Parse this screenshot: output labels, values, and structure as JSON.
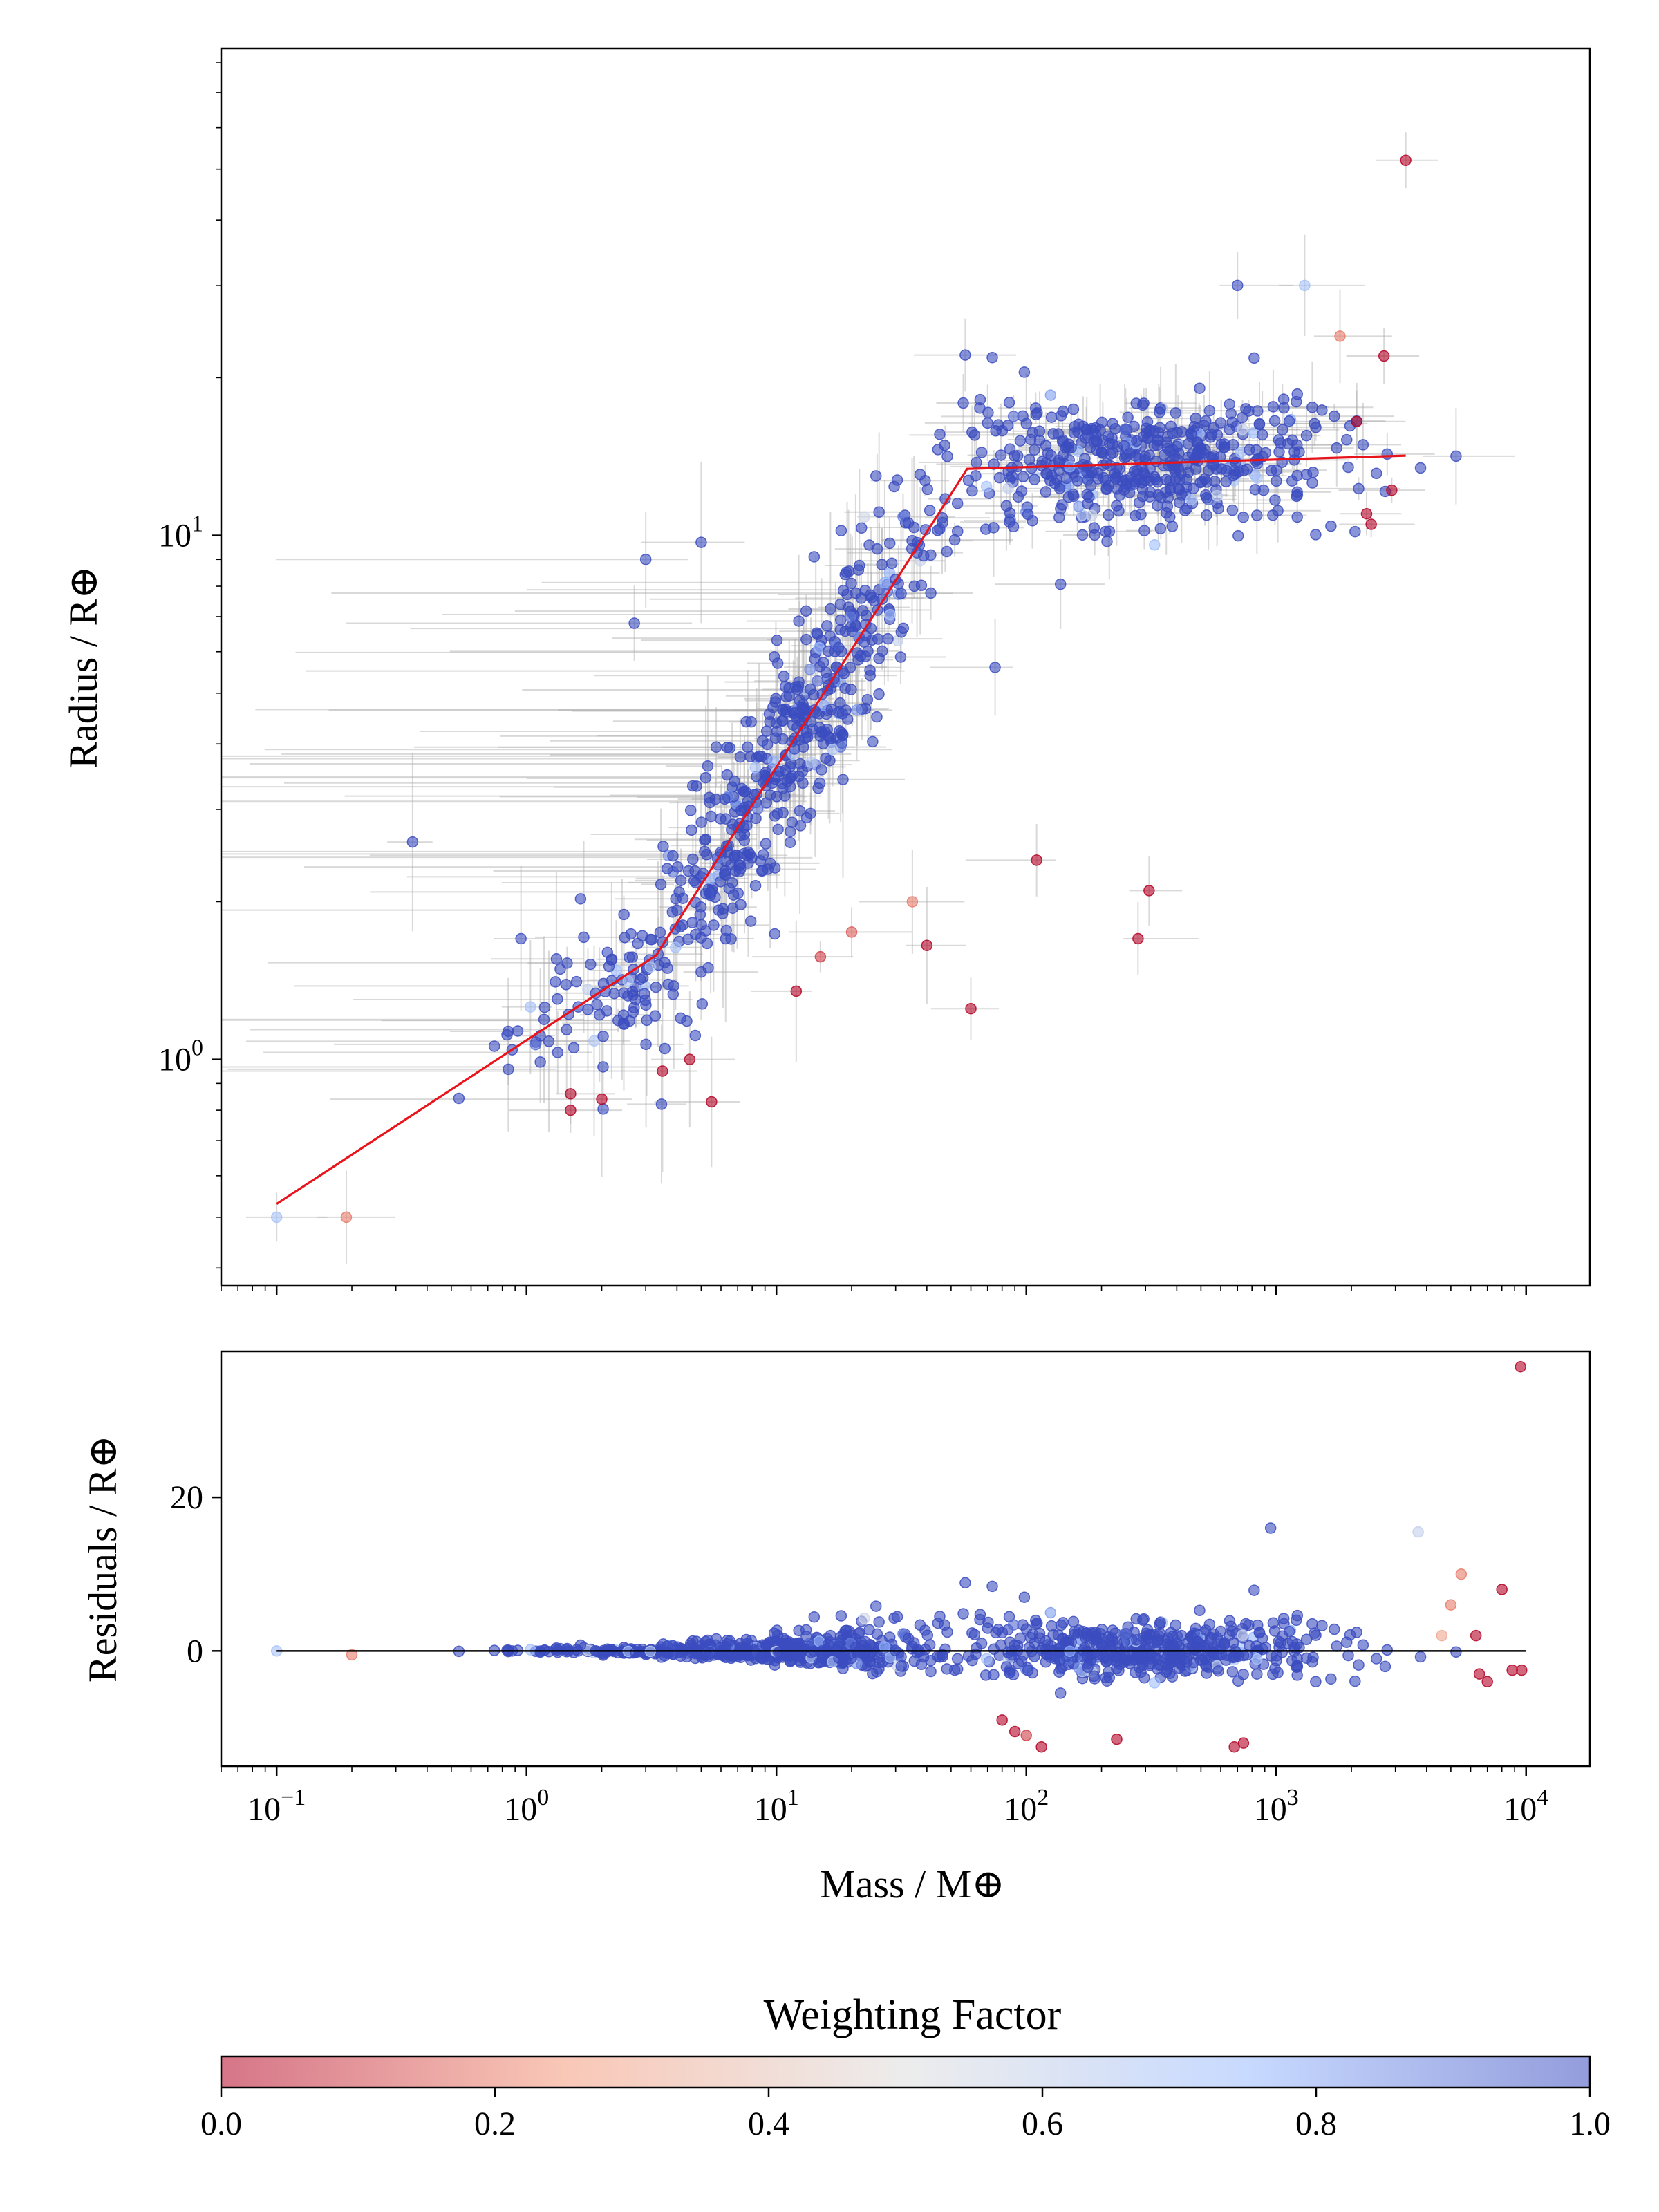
{
  "chart_data": [
    {
      "type": "scatter",
      "panel": "main",
      "ylabel": "Radius / R⊕",
      "xscale": "log",
      "yscale": "log",
      "xlim": [
        0.06,
        18000
      ],
      "ylim": [
        0.37,
        85
      ],
      "y_ticks": [
        {
          "value": 1,
          "label": "10",
          "exp": "0"
        },
        {
          "value": 10,
          "label": "10",
          "exp": "1"
        }
      ],
      "fit_line": {
        "color": "#e8141c",
        "x": [
          0.1,
          3.3,
          58,
          3300
        ],
        "y": [
          0.53,
          1.58,
          13.4,
          14.2
        ]
      },
      "outlier_points": [
        {
          "x": 0.1,
          "y": 0.5,
          "w": 0.7
        },
        {
          "x": 0.19,
          "y": 0.5,
          "w": 0.2
        },
        {
          "x": 0.35,
          "y": 2.6,
          "w": 1.0
        },
        {
          "x": 0.95,
          "y": 1.7,
          "w": 1.0
        },
        {
          "x": 1.5,
          "y": 0.8,
          "w": 0.0
        },
        {
          "x": 1.5,
          "y": 0.86,
          "w": 0.0
        },
        {
          "x": 2.0,
          "y": 0.84,
          "w": 0.0
        },
        {
          "x": 2.7,
          "y": 6.8,
          "w": 1.0
        },
        {
          "x": 3.0,
          "y": 9.0,
          "w": 1.0
        },
        {
          "x": 3.5,
          "y": 0.95,
          "w": 0.0
        },
        {
          "x": 4.5,
          "y": 1.0,
          "w": 0.0
        },
        {
          "x": 5.5,
          "y": 0.83,
          "w": 0.0
        },
        {
          "x": 5.0,
          "y": 9.7,
          "w": 1.0
        },
        {
          "x": 12,
          "y": 1.35,
          "w": 0.0
        },
        {
          "x": 15,
          "y": 1.57,
          "w": 0.1
        },
        {
          "x": 20,
          "y": 1.75,
          "w": 0.15
        },
        {
          "x": 35,
          "y": 2.0,
          "w": 0.2
        },
        {
          "x": 40,
          "y": 1.65,
          "w": 0.0
        },
        {
          "x": 60,
          "y": 1.25,
          "w": 0.0
        },
        {
          "x": 75,
          "y": 5.6,
          "w": 1.0
        },
        {
          "x": 110,
          "y": 2.4,
          "w": 0.0
        },
        {
          "x": 280,
          "y": 1.7,
          "w": 0.0
        },
        {
          "x": 310,
          "y": 2.1,
          "w": 0.0
        },
        {
          "x": 700,
          "y": 30,
          "w": 1.0
        },
        {
          "x": 1300,
          "y": 30,
          "w": 0.7
        },
        {
          "x": 1800,
          "y": 24,
          "w": 0.2
        },
        {
          "x": 2100,
          "y": 16.5,
          "w": 0.0
        },
        {
          "x": 2700,
          "y": 22,
          "w": 0.0
        },
        {
          "x": 3300,
          "y": 52,
          "w": 0.0
        },
        {
          "x": 2300,
          "y": 11,
          "w": 0.0
        },
        {
          "x": 2400,
          "y": 10.5,
          "w": 0.0
        },
        {
          "x": 2900,
          "y": 12.2,
          "w": 0.0
        }
      ]
    },
    {
      "type": "scatter",
      "panel": "residuals",
      "xlabel": "Mass / M⊕",
      "ylabel": "Residuals / R⊕",
      "xscale": "log",
      "xlim": [
        0.06,
        18000
      ],
      "ylim": [
        -15,
        39
      ],
      "x_ticks": [
        {
          "value": 0.1,
          "label": "10",
          "exp": "−1"
        },
        {
          "value": 1,
          "label": "10",
          "exp": "0"
        },
        {
          "value": 10,
          "label": "10",
          "exp": "1"
        },
        {
          "value": 100,
          "label": "10",
          "exp": "2"
        },
        {
          "value": 1000,
          "label": "10",
          "exp": "3"
        },
        {
          "value": 10000,
          "label": "10",
          "exp": "4"
        }
      ],
      "y_ticks": [
        {
          "value": 0,
          "label": "0"
        },
        {
          "value": 20,
          "label": "20"
        }
      ],
      "zero_line": {
        "x": [
          0.1,
          10000
        ],
        "y": 0
      },
      "outlier_points": [
        {
          "x": 9500,
          "y": 37,
          "w": 0.0
        },
        {
          "x": 950,
          "y": 16,
          "w": 1.0
        },
        {
          "x": 3700,
          "y": 15.5,
          "w": 0.6
        },
        {
          "x": 5500,
          "y": 10,
          "w": 0.2
        },
        {
          "x": 8000,
          "y": 8,
          "w": 0.0
        },
        {
          "x": 5000,
          "y": 6,
          "w": 0.2
        },
        {
          "x": 6300,
          "y": 2,
          "w": 0.0
        },
        {
          "x": 4600,
          "y": 2,
          "w": 0.3
        },
        {
          "x": 7000,
          "y": -4,
          "w": 0.0
        },
        {
          "x": 6500,
          "y": -3,
          "w": 0.0
        },
        {
          "x": 8800,
          "y": -2.5,
          "w": 0.0
        },
        {
          "x": 9600,
          "y": -2.5,
          "w": 0.0
        },
        {
          "x": 80,
          "y": -9,
          "w": 0.0
        },
        {
          "x": 90,
          "y": -10.5,
          "w": 0.0
        },
        {
          "x": 100,
          "y": -11,
          "w": 0.1
        },
        {
          "x": 115,
          "y": -12.5,
          "w": 0.0
        },
        {
          "x": 230,
          "y": -11.5,
          "w": 0.0
        },
        {
          "x": 680,
          "y": -12.5,
          "w": 0.0
        },
        {
          "x": 740,
          "y": -12,
          "w": 0.0
        },
        {
          "x": 0.2,
          "y": -0.5,
          "w": 0.2
        },
        {
          "x": 0.1,
          "y": 0,
          "w": 0.7
        }
      ]
    }
  ],
  "colorbar": {
    "label": "Weighting Factor",
    "cmap": "coolwarm",
    "range": [
      0.0,
      1.0
    ],
    "ticks": [
      "0.0",
      "0.2",
      "0.4",
      "0.6",
      "0.8",
      "1.0"
    ]
  },
  "colors": {
    "cold": "#3b4cc0",
    "mid": "#dddddd",
    "warm": "#b40426",
    "errorbar": "#aaaaaa"
  }
}
